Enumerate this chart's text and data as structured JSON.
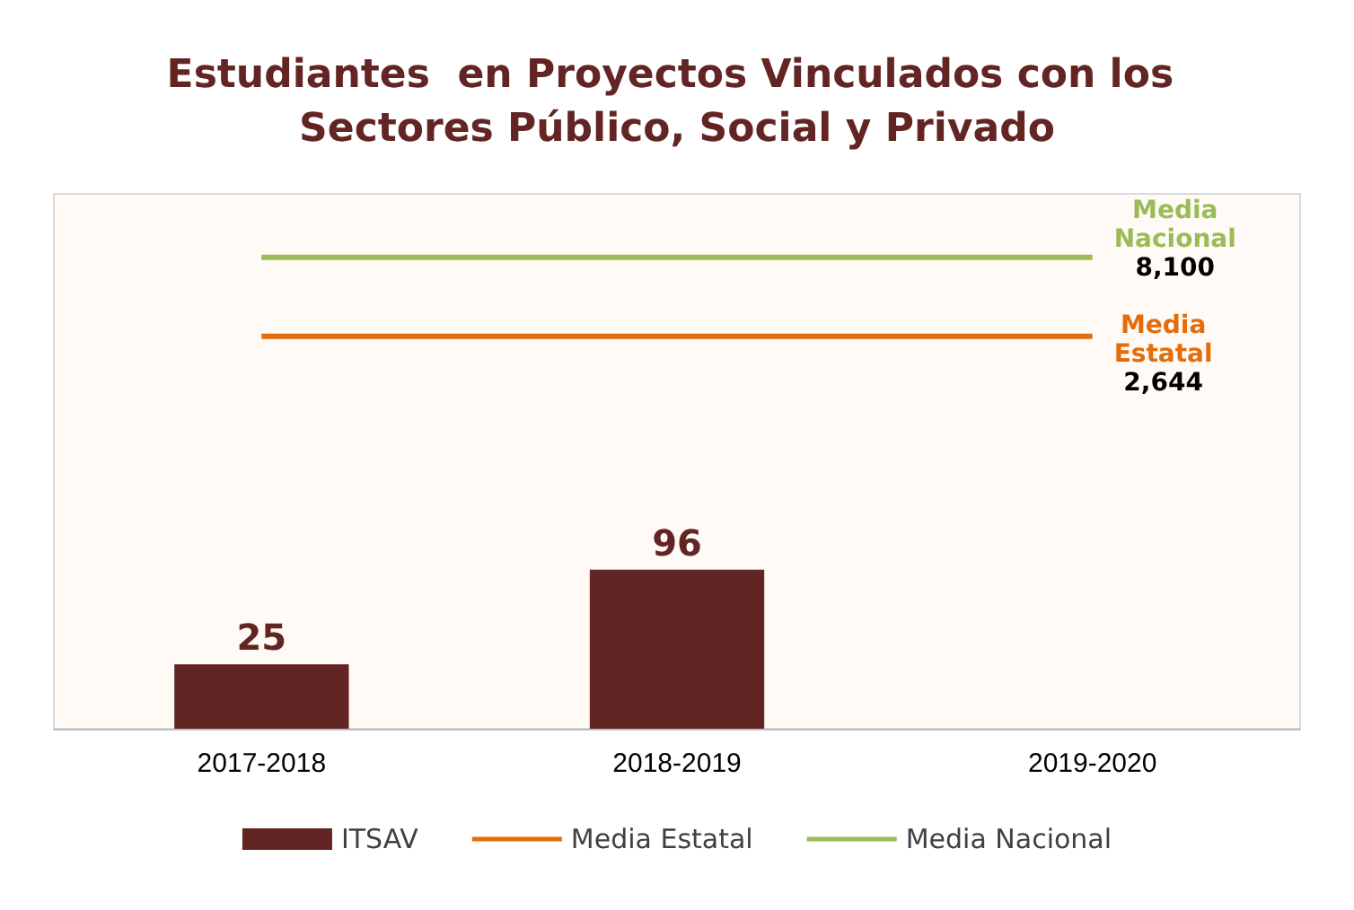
{
  "chart_data": {
    "type": "bar",
    "title": "Estudiantes  en Proyectos Vinculados con los Sectores Público, Social y Privado",
    "categories": [
      "2017-2018",
      "2018-2019",
      "2019-2020"
    ],
    "log": true,
    "ylim": [
      10,
      20000
    ],
    "tick_labels": "x",
    "legend": "bottom",
    "data_labels": true,
    "series": [
      {
        "name": "ITSAV",
        "color": "#632523",
        "values": [
          25,
          96,
          null
        ]
      },
      {
        "name": "Media Estatal",
        "type": "line",
        "color": "#e46c0a",
        "values": [
          2644,
          2644,
          2644
        ],
        "value_labels": [
          null,
          null,
          "2,644"
        ]
      },
      {
        "name": "Media Nacional",
        "type": "line",
        "color": "#9bbb59",
        "values": [
          8100,
          8100,
          8100
        ],
        "value_labels": [
          null,
          null,
          "8,100"
        ]
      }
    ]
  }
}
